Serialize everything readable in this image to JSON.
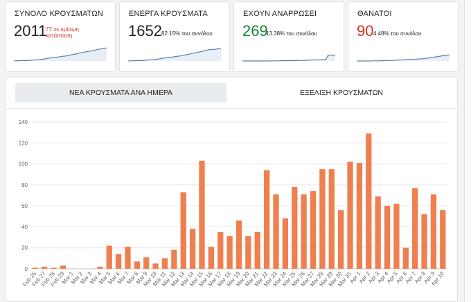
{
  "cards": [
    {
      "title": "ΣΥΝΟΛΟ ΚΡΟΥΣΜΑΤΩΝ",
      "value": "2011",
      "note": "77 σε κρίσιμη κατάσταση",
      "value_color": "#202124",
      "note_color": "#d93025",
      "spark": [
        1,
        1,
        2,
        2,
        3,
        3,
        3,
        5,
        6,
        7,
        8,
        10,
        12,
        14,
        17,
        20,
        22,
        24,
        26,
        28,
        31,
        33,
        35,
        38,
        42,
        45,
        48,
        52,
        56,
        59,
        62,
        65,
        68,
        71,
        74,
        78,
        82,
        85,
        88,
        90
      ]
    },
    {
      "title": "ΕΝΕΡΓΑ ΚΡΟΥΣΜΑΤΑ",
      "value": "1652",
      "note": "82.15% του συνόλου",
      "value_color": "#202124",
      "note_color": "#202124",
      "spark": [
        1,
        1,
        2,
        2,
        3,
        3,
        3,
        5,
        6,
        7,
        8,
        10,
        12,
        14,
        17,
        20,
        22,
        24,
        26,
        28,
        31,
        33,
        35,
        38,
        42,
        45,
        48,
        52,
        56,
        59,
        62,
        65,
        70,
        74,
        77,
        80,
        79,
        82,
        84,
        85
      ]
    },
    {
      "title": "ΕΧΟΥΝ ΑΝΑΡΡΩΣΕΙ",
      "value": "269",
      "note": "13.38% του συνόλου",
      "value_color": "#188038",
      "note_color": "#202124",
      "spark": [
        0,
        0,
        0,
        0,
        0,
        0,
        0,
        0,
        0,
        0,
        0,
        0,
        1,
        1,
        1,
        1,
        2,
        2,
        2,
        2,
        3,
        3,
        3,
        3,
        4,
        4,
        5,
        5,
        6,
        6,
        7,
        7,
        8,
        8,
        9,
        9,
        40,
        40,
        40,
        40
      ]
    },
    {
      "title": "ΘΑΝΑΤΟΙ",
      "value": "90",
      "note": "4.48% του συνόλου",
      "value_color": "#d93025",
      "note_color": "#202124",
      "spark": [
        0,
        0,
        0,
        0,
        0,
        0,
        0,
        1,
        1,
        1,
        2,
        2,
        3,
        3,
        4,
        4,
        5,
        6,
        6,
        7,
        8,
        9,
        10,
        11,
        12,
        13,
        14,
        15,
        16,
        18,
        20,
        22,
        25,
        28,
        30,
        33,
        36,
        38,
        40,
        42
      ]
    }
  ],
  "tabs": [
    {
      "label": "ΝΕΑ ΚΡΟΥΣΜΑΤΑ ΑΝΑ ΗΜΕΡΑ",
      "active": true
    },
    {
      "label": "ΕΞΕΛΙΞΗ ΚΡΟΥΣΜΑΤΩΝ",
      "active": false
    }
  ],
  "chart_data": {
    "type": "bar",
    "title": "",
    "xlabel": "",
    "ylabel": "",
    "ylim": [
      0,
      140
    ],
    "yticks": [
      0,
      20,
      40,
      60,
      80,
      100,
      120,
      140
    ],
    "bar_color": "#f07f4f",
    "categories": [
      "Feb 26",
      "Feb 27",
      "Feb 28",
      "Feb 29",
      "Mar 1",
      "Mar 2",
      "Mar 3",
      "Mar 4",
      "Mar 5",
      "Mar 6",
      "Mar 7",
      "Mar 8",
      "Mar 9",
      "Mar 10",
      "Mar 11",
      "Mar 12",
      "Mar 13",
      "Mar 14",
      "Mar 15",
      "Mar 16",
      "Mar 17",
      "Mar 18",
      "Mar 19",
      "Mar 20",
      "Mar 21",
      "Mar 22",
      "Mar 23",
      "Mar 24",
      "Mar 25",
      "Mar 26",
      "Mar 27",
      "Mar 28",
      "Mar 29",
      "Mar 30",
      "Mar 31",
      "Apr 1",
      "Apr 2",
      "Apr 3",
      "Apr 4",
      "Apr 5",
      "Apr 6",
      "Apr 7",
      "Apr 8",
      "Apr 9",
      "Apr 10"
    ],
    "values": [
      1,
      2,
      1,
      3,
      0,
      0,
      0,
      2,
      22,
      14,
      21,
      7,
      11,
      5,
      10,
      18,
      73,
      38,
      103,
      21,
      35,
      31,
      46,
      31,
      35,
      94,
      71,
      48,
      78,
      71,
      74,
      95,
      95,
      56,
      102,
      101,
      129,
      69,
      60,
      62,
      20,
      77,
      52,
      71,
      56
    ]
  }
}
